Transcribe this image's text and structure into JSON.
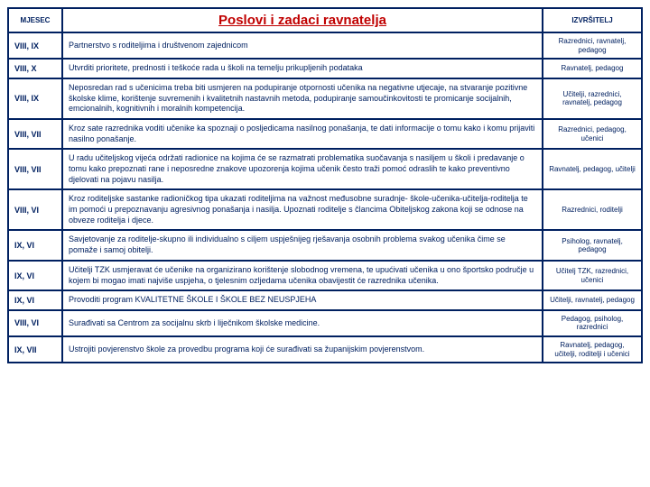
{
  "colors": {
    "border": "#002060",
    "text": "#002060",
    "title": "#c00000"
  },
  "header": {
    "month": "MJESEC",
    "title": "Poslovi i zadaci ravnatelja",
    "executor": "IZVRŠITELJ"
  },
  "rows": [
    {
      "month": "VIII, IX",
      "task": "Partnerstvo s roditeljima i društvenom zajednicom",
      "exec": "Razrednici, ravnatelj, pedagog"
    },
    {
      "month": "VIII, X",
      "task": "Utvrditi prioritete, prednosti i teškoće rada u školi na temelju prikupljenih podataka",
      "exec": "Ravnatelj, pedagog"
    },
    {
      "month": "VIII, IX",
      "task": "Neposredan rad s učenicima treba biti usmjeren na podupiranje otpornosti učenika na negativne utjecaje, na stvaranje pozitivne školske klime, korištenje suvremenih i kvalitetnih nastavnih metoda, podupiranje samoučinkovitosti te promicanje socijalnih, emcionalnih, kognitivnih i moralnih kompetencija.",
      "exec": "Učitelji, razrednici, ravnatelj, pedagog"
    },
    {
      "month": "VIII, VII",
      "task": "Kroz sate razrednika voditi učenike ka spoznaji o posljedicama nasilnog ponašanja, te dati informacije o tomu kako i komu prijaviti nasilno ponašanje.",
      "exec": "Razrednici, pedagog, učenici"
    },
    {
      "month": "VIII, VII",
      "task": "U radu učiteljskog vijeća održati radionice na kojima će se razmatrati problematika suočavanja s nasiljem u školi i predavanje o tomu kako prepoznati rane i neposredne znakove upozorenja kojima učenik često traži pomoć odraslih te kako preventivno djelovati na pojavu nasilja.",
      "exec": "Ravnatelj, pedagog, učitelji"
    },
    {
      "month": "VIII, VI",
      "task": "Kroz roditeljske sastanke radioničkog tipa ukazati roditeljima na važnost međusobne suradnje- škole-učenika-učitelja-roditelja te im pomoći u prepoznavanju agresivnog ponašanja i nasilja. Upoznati roditelje s člancima Obiteljskog zakona koji se odnose na obveze roditelja i djece.",
      "exec": "Razrednici, roditelji"
    },
    {
      "month": "IX, VI",
      "task": "Savjetovanje za roditelje-skupno ili individualno s ciljem uspješnijeg rješavanja osobnih problema svakog učenika čime se pomaže i samoj obitelji.",
      "exec": "Psiholog, ravnatelj, pedagog"
    },
    {
      "month": "IX, VI",
      "task": "Učitelji TZK usmjeravat će učenike na organizirano korištenje slobodnog vremena, te upućivati učenika u ono športsko područje u kojem bi mogao imati najviše uspjeha, o tjelesnim ozljedama učenika obavijestit će razrednika učenika.",
      "exec": "Učitelj TZK, razrednici, učenici"
    },
    {
      "month": "IX, VI",
      "task": "Provoditi program KVALITETNE ŠKOLE I ŠKOLE BEZ NEUSPJEHA",
      "exec": "Učitelji, ravnatelj, pedagog"
    },
    {
      "month": "VIII, VI",
      "task": "Surađivati sa Centrom za socijalnu skrb i liječnikom školske medicine.",
      "exec": "Pedagog, psiholog, razrednici"
    },
    {
      "month": "IX, VII",
      "task": "Ustrojiti povjerenstvo škole za provedbu programa koji će surađivati sa županijskim povjerenstvom.",
      "exec": "Ravnatelj, pedagog, učitelji, roditelji i učenici"
    }
  ]
}
